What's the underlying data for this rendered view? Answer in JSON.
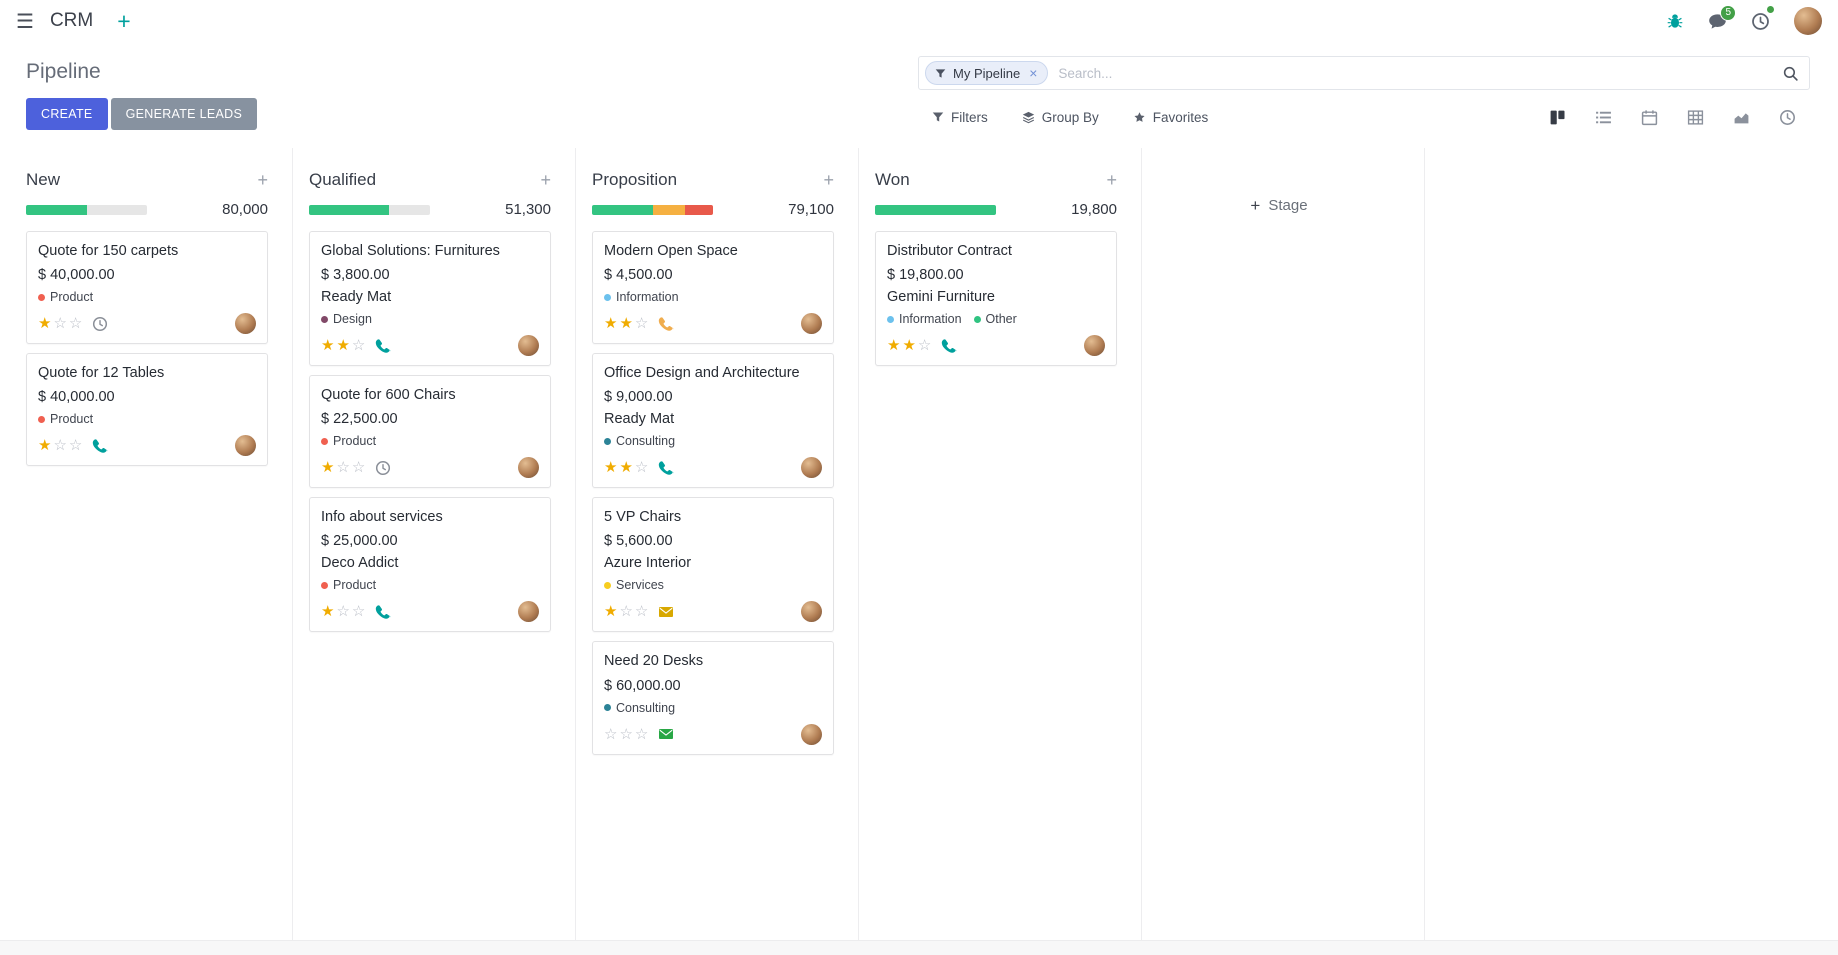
{
  "navbar": {
    "menu_icon": "☰",
    "app": "CRM",
    "plus_icon": "+",
    "message_badge": "5"
  },
  "control": {
    "title": "Pipeline",
    "buttons": {
      "create": "CREATE",
      "generate": "GENERATE LEADS"
    },
    "search": {
      "facet_label": "My Pipeline",
      "remove": "×",
      "placeholder": "Search..."
    },
    "menus": {
      "filters": "Filters",
      "group_by": "Group By",
      "favorites": "Favorites"
    }
  },
  "board": {
    "add_stage_icon": "+",
    "add_stage": "Stage",
    "column_add_icon": "+",
    "star_filled": "★",
    "star_empty": "☆",
    "columns": [
      {
        "name": "New",
        "total": "80,000",
        "progress": [
          {
            "color": "#33c481",
            "pct": 50
          },
          {
            "color": "#e6e6e6",
            "pct": 50
          }
        ],
        "cards": [
          {
            "title": "Quote for 150 carpets",
            "amount": "$ 40,000.00",
            "partner": "",
            "tags": [
              {
                "label": "Product",
                "color": "#f06050"
              }
            ],
            "stars": 1,
            "activity": {
              "type": "clock",
              "color": "#8a8f98"
            }
          },
          {
            "title": "Quote for 12 Tables",
            "amount": "$ 40,000.00",
            "partner": "",
            "tags": [
              {
                "label": "Product",
                "color": "#f06050"
              }
            ],
            "stars": 1,
            "activity": {
              "type": "phone",
              "color": "#00a09d"
            }
          }
        ]
      },
      {
        "name": "Qualified",
        "total": "51,300",
        "progress": [
          {
            "color": "#33c481",
            "pct": 66
          },
          {
            "color": "#e6e6e6",
            "pct": 34
          }
        ],
        "cards": [
          {
            "title": "Global Solutions: Furnitures",
            "amount": "$ 3,800.00",
            "partner": "Ready Mat",
            "tags": [
              {
                "label": "Design",
                "color": "#814968"
              }
            ],
            "stars": 2,
            "activity": {
              "type": "phone",
              "color": "#00a09d"
            }
          },
          {
            "title": "Quote for 600 Chairs",
            "amount": "$ 22,500.00",
            "partner": "",
            "tags": [
              {
                "label": "Product",
                "color": "#f06050"
              }
            ],
            "stars": 1,
            "activity": {
              "type": "clock",
              "color": "#8a8f98"
            }
          },
          {
            "title": "Info about services",
            "amount": "$ 25,000.00",
            "partner": "Deco Addict",
            "tags": [
              {
                "label": "Product",
                "color": "#f06050"
              }
            ],
            "stars": 1,
            "activity": {
              "type": "phone",
              "color": "#00a09d"
            }
          }
        ]
      },
      {
        "name": "Proposition",
        "total": "79,100",
        "progress": [
          {
            "color": "#33c481",
            "pct": 50
          },
          {
            "color": "#f5b041",
            "pct": 27
          },
          {
            "color": "#e8594a",
            "pct": 23
          }
        ],
        "cards": [
          {
            "title": "Modern Open Space",
            "amount": "$ 4,500.00",
            "partner": "",
            "tags": [
              {
                "label": "Information",
                "color": "#6cc1ed"
              }
            ],
            "stars": 2,
            "activity": {
              "type": "phone",
              "color": "#f0ad4e"
            }
          },
          {
            "title": "Office Design and Architecture",
            "amount": "$ 9,000.00",
            "partner": "Ready Mat",
            "tags": [
              {
                "label": "Consulting",
                "color": "#2c8397"
              }
            ],
            "stars": 2,
            "activity": {
              "type": "phone",
              "color": "#00a09d"
            }
          },
          {
            "title": "5 VP Chairs",
            "amount": "$ 5,600.00",
            "partner": "Azure Interior",
            "tags": [
              {
                "label": "Services",
                "color": "#f7cd1f"
              }
            ],
            "stars": 1,
            "activity": {
              "type": "envelope",
              "color": "#d8a800"
            }
          },
          {
            "title": "Need 20 Desks",
            "amount": "$ 60,000.00",
            "partner": "",
            "tags": [
              {
                "label": "Consulting",
                "color": "#2c8397"
              }
            ],
            "stars": 0,
            "activity": {
              "type": "envelope",
              "color": "#28a745"
            }
          }
        ]
      },
      {
        "name": "Won",
        "total": "19,800",
        "progress": [
          {
            "color": "#33c481",
            "pct": 100
          }
        ],
        "cards": [
          {
            "title": "Distributor Contract",
            "amount": "$ 19,800.00",
            "partner": "Gemini Furniture",
            "tags": [
              {
                "label": "Information",
                "color": "#6cc1ed"
              },
              {
                "label": "Other",
                "color": "#30c381"
              }
            ],
            "stars": 2,
            "activity": {
              "type": "phone",
              "color": "#00a09d"
            }
          }
        ]
      }
    ]
  }
}
